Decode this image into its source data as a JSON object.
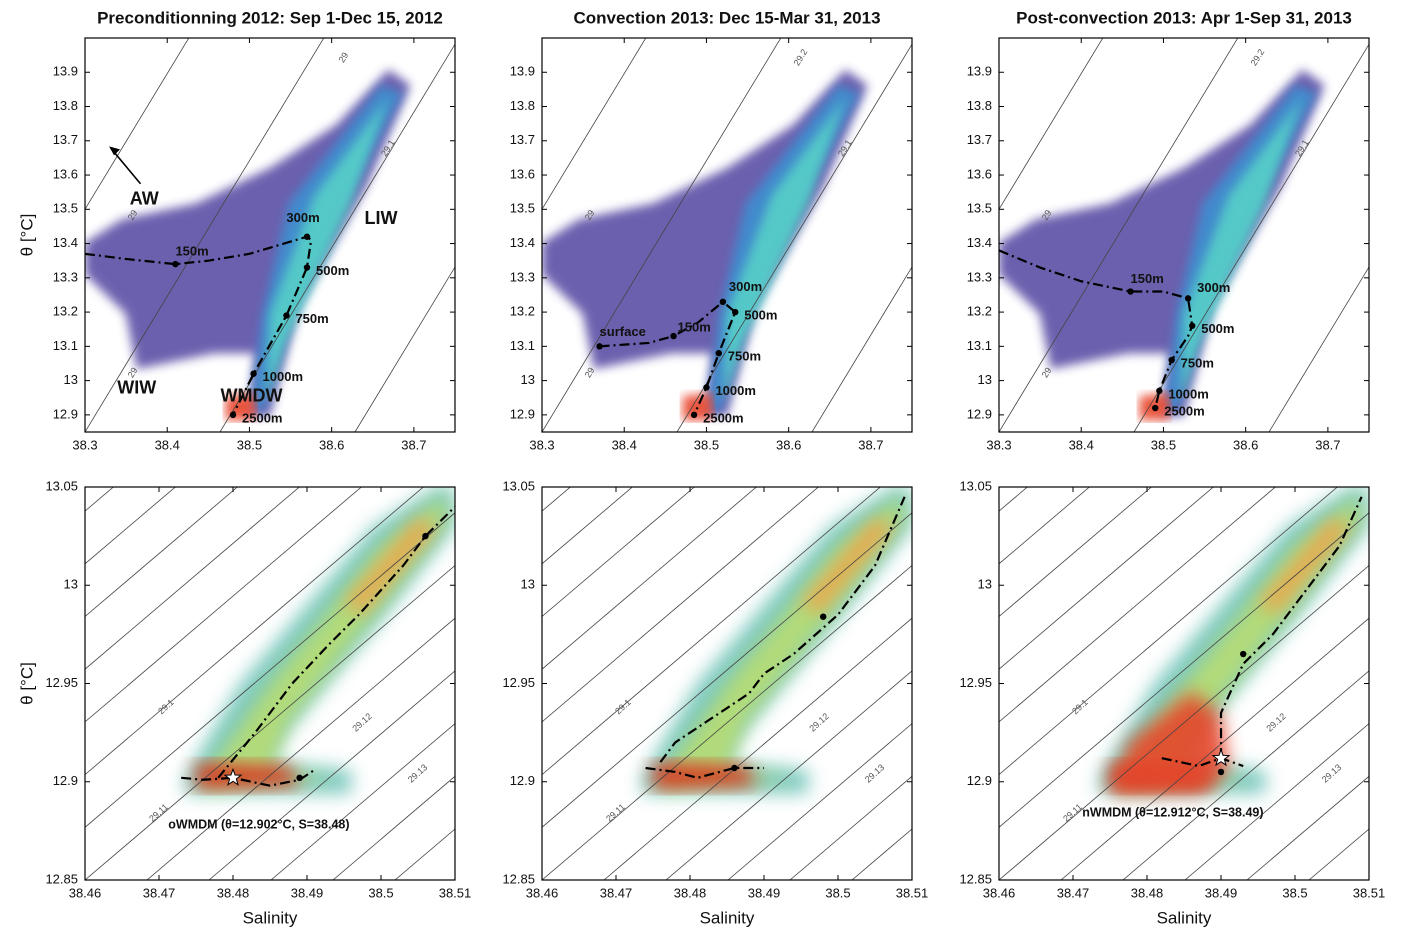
{
  "chart_data": [
    {
      "type": "line",
      "title": "Preconditionning 2012: Sep 1-Dec 15, 2012",
      "ylabel": "θ [°C]",
      "xlim": [
        38.3,
        38.75
      ],
      "ylim": [
        12.85,
        14.0
      ],
      "xticks": [
        38.3,
        38.4,
        38.5,
        38.6,
        38.7
      ],
      "yticks": [
        12.9,
        13,
        13.1,
        13.2,
        13.3,
        13.4,
        13.5,
        13.6,
        13.7,
        13.8,
        13.9
      ],
      "profile": {
        "x": [
          38.3,
          38.35,
          38.41,
          38.45,
          38.5,
          38.57,
          38.575,
          38.57,
          38.545,
          38.505,
          38.48
        ],
        "y": [
          13.37,
          13.355,
          13.34,
          13.35,
          13.37,
          13.42,
          13.41,
          13.33,
          13.19,
          13.02,
          12.9
        ]
      },
      "markers": {
        "x": [
          38.41,
          38.57,
          38.57,
          38.545,
          38.505,
          38.48
        ],
        "y": [
          13.34,
          13.42,
          13.33,
          13.19,
          13.02,
          12.9
        ],
        "labels": [
          "150m",
          "300m",
          "500m",
          "750m",
          "1000m",
          "2500m"
        ]
      },
      "annotations": [
        "AW",
        "LIW",
        "WIW",
        "WMDW"
      ],
      "contour_labels": [
        "29",
        "29.1",
        "29",
        "29"
      ]
    },
    {
      "type": "line",
      "title": "Convection 2013: Dec 15-Mar 31, 2013",
      "xlim": [
        38.3,
        38.75
      ],
      "ylim": [
        12.85,
        14.0
      ],
      "xticks": [
        38.3,
        38.4,
        38.5,
        38.6,
        38.7
      ],
      "yticks": [
        12.9,
        13,
        13.1,
        13.2,
        13.3,
        13.4,
        13.5,
        13.6,
        13.7,
        13.8,
        13.9
      ],
      "profile": {
        "x": [
          38.37,
          38.4,
          38.43,
          38.46,
          38.49,
          38.52,
          38.535,
          38.525,
          38.515,
          38.5,
          38.485
        ],
        "y": [
          13.1,
          13.105,
          13.11,
          13.13,
          13.17,
          13.23,
          13.2,
          13.14,
          13.08,
          12.98,
          12.9
        ]
      },
      "markers": {
        "x": [
          38.37,
          38.46,
          38.52,
          38.535,
          38.515,
          38.5,
          38.485
        ],
        "y": [
          13.1,
          13.13,
          13.23,
          13.2,
          13.08,
          12.98,
          12.9
        ],
        "labels": [
          "surface",
          "150m",
          "300m",
          "500m",
          "750m",
          "1000m",
          "2500m"
        ]
      },
      "annotations": [],
      "contour_labels": [
        "29",
        "29.1",
        "29.2",
        "29"
      ]
    },
    {
      "type": "line",
      "title": "Post-convection 2013: Apr 1-Sep 31, 2013",
      "xlim": [
        38.3,
        38.75
      ],
      "ylim": [
        12.85,
        14.0
      ],
      "xticks": [
        38.3,
        38.4,
        38.5,
        38.6,
        38.7
      ],
      "yticks": [
        12.9,
        13,
        13.1,
        13.2,
        13.3,
        13.4,
        13.5,
        13.6,
        13.7,
        13.8,
        13.9
      ],
      "profile": {
        "x": [
          38.3,
          38.35,
          38.4,
          38.46,
          38.5,
          38.53,
          38.535,
          38.53,
          38.51,
          38.495,
          38.49
        ],
        "y": [
          13.38,
          13.33,
          13.29,
          13.26,
          13.26,
          13.24,
          13.16,
          13.13,
          13.06,
          12.97,
          12.92
        ]
      },
      "markers": {
        "x": [
          38.46,
          38.53,
          38.535,
          38.51,
          38.495,
          38.49
        ],
        "y": [
          13.26,
          13.24,
          13.16,
          13.06,
          12.97,
          12.92
        ],
        "labels": [
          "150m",
          "300m",
          "500m",
          "750m",
          "1000m",
          "2500m"
        ]
      },
      "annotations": [],
      "contour_labels": [
        "29",
        "29.1",
        "29.2",
        "29"
      ]
    },
    {
      "type": "line",
      "ylabel": "θ [°C]",
      "xlabel": "Salinity",
      "xlim": [
        38.46,
        38.51
      ],
      "ylim": [
        12.85,
        13.05
      ],
      "xticks": [
        38.46,
        38.47,
        38.48,
        38.49,
        38.5,
        38.51
      ],
      "yticks": [
        12.85,
        12.9,
        12.95,
        13,
        13.05
      ],
      "profile": {
        "x": [
          38.473,
          38.476,
          38.48,
          38.485,
          38.489,
          38.491,
          null,
          38.478,
          38.483,
          38.488,
          38.493,
          38.497,
          38.503,
          38.506,
          38.51
        ],
        "y": [
          12.902,
          12.901,
          12.902,
          12.898,
          12.901,
          12.906,
          null,
          12.902,
          12.925,
          12.95,
          12.97,
          12.985,
          13.01,
          13.025,
          13.04
        ]
      },
      "markers": {
        "x": [
          38.489,
          38.506
        ],
        "y": [
          12.902,
          13.025
        ]
      },
      "star": {
        "x": 38.48,
        "y": 12.902
      },
      "annotations": [
        "oWMDM (θ=12.902°C, S=38.48)"
      ],
      "contour_labels": [
        "29.1",
        "29.11",
        "29.12",
        "29.13"
      ]
    },
    {
      "type": "line",
      "xlabel": "Salinity",
      "xlim": [
        38.46,
        38.51
      ],
      "ylim": [
        12.85,
        13.05
      ],
      "xticks": [
        38.46,
        38.47,
        38.48,
        38.49,
        38.5,
        38.51
      ],
      "yticks": [
        12.85,
        12.9,
        12.95,
        13,
        13.05
      ],
      "profile": {
        "x": [
          38.474,
          38.478,
          38.481,
          38.486,
          38.49,
          null,
          38.476,
          38.478,
          38.48,
          38.484,
          38.488,
          38.49,
          38.494,
          38.497,
          38.5,
          38.505,
          38.509
        ],
        "y": [
          12.907,
          12.905,
          12.902,
          12.907,
          12.907,
          null,
          12.91,
          12.92,
          12.925,
          12.935,
          12.945,
          12.955,
          12.965,
          12.975,
          12.985,
          13.01,
          13.045
        ]
      },
      "markers": {
        "x": [
          38.486,
          38.498
        ],
        "y": [
          12.907,
          12.984
        ]
      },
      "annotations": [],
      "contour_labels": [
        "29.1",
        "29.11",
        "29.12",
        "29.13"
      ]
    },
    {
      "type": "line",
      "xlabel": "Salinity",
      "xlim": [
        38.46,
        38.51
      ],
      "ylim": [
        12.85,
        13.05
      ],
      "xticks": [
        38.46,
        38.47,
        38.48,
        38.49,
        38.5,
        38.51
      ],
      "yticks": [
        12.85,
        12.9,
        12.95,
        13,
        13.05
      ],
      "profile": {
        "x": [
          38.482,
          38.487,
          38.49,
          38.493,
          null,
          38.49,
          38.49,
          38.493,
          38.497,
          38.502,
          38.506,
          38.509
        ],
        "y": [
          12.912,
          12.908,
          12.912,
          12.908,
          null,
          12.912,
          12.935,
          12.96,
          12.975,
          13.0,
          13.02,
          13.045
        ]
      },
      "markers": {
        "x": [
          38.49,
          38.493
        ],
        "y": [
          12.905,
          12.965
        ]
      },
      "star": {
        "x": 38.49,
        "y": 12.912
      },
      "annotations": [
        "nWMDM (θ=12.912°C, S=38.49)"
      ],
      "contour_labels": [
        "29.1",
        "29.11",
        "29.12",
        "29.13"
      ]
    }
  ]
}
